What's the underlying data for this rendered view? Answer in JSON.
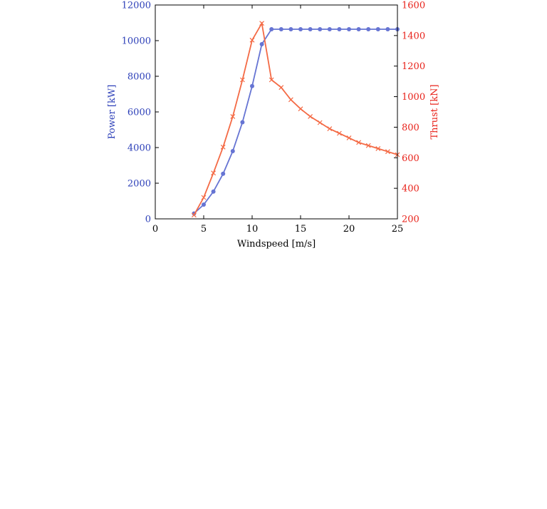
{
  "chart_data": {
    "type": "line",
    "title": "",
    "xlabel": "Windspeed [m/s]",
    "xlim": [
      0,
      25
    ],
    "xticks": [
      0,
      5,
      10,
      15,
      20,
      25
    ],
    "grid": false,
    "axes": {
      "left": {
        "label": "Power [kW]",
        "color": "#2c3fb8",
        "ylim": [
          0,
          12000
        ],
        "ticks": [
          0,
          2000,
          4000,
          6000,
          8000,
          10000,
          12000
        ]
      },
      "right": {
        "label": "Thrust [kN]",
        "color": "#e8221a",
        "ylim": [
          200,
          1600
        ],
        "ticks": [
          200,
          400,
          600,
          800,
          1000,
          1200,
          1400,
          1600
        ]
      }
    },
    "x": [
      4,
      5,
      6,
      7,
      8,
      9,
      10,
      11,
      12,
      13,
      14,
      15,
      16,
      17,
      18,
      19,
      20,
      21,
      22,
      23,
      24,
      25
    ],
    "series": [
      {
        "axis": "left",
        "color": "#6674d3",
        "marker": "circle",
        "values": [
          300,
          800,
          1530,
          2530,
          3800,
          5420,
          7450,
          9800,
          10640,
          10640,
          10640,
          10640,
          10640,
          10640,
          10640,
          10640,
          10640,
          10640,
          10640,
          10640,
          10640,
          10640
        ]
      },
      {
        "axis": "right",
        "color": "#f46a45",
        "marker": "x",
        "values": [
          225,
          340,
          500,
          670,
          870,
          1110,
          1370,
          1480,
          1110,
          1060,
          980,
          920,
          870,
          830,
          790,
          760,
          730,
          700,
          680,
          660,
          640,
          620
        ]
      }
    ]
  }
}
